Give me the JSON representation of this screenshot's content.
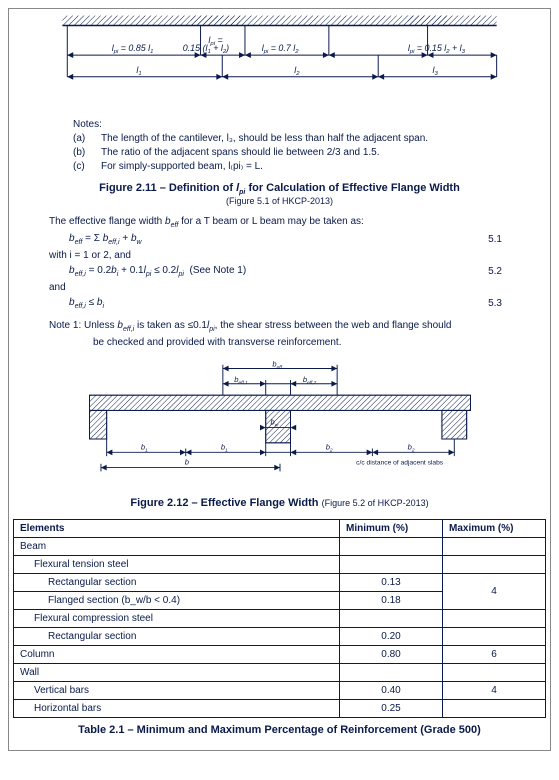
{
  "beam_diagram": {
    "labels": {
      "span0": "l₍pi₎ = 0.85 l₁",
      "span1_top": "l₍pi₎ =",
      "span1": "0.15 (l₁ + l₂)",
      "span2": "l₍pi₎ = 0.7 l₂",
      "span3": "l₍pi₎ = 0.15 l₂ + l₃",
      "len1": "l₁",
      "len2": "l₂",
      "len3": "l₃"
    },
    "colors": {
      "line": "#0a1a4a",
      "hatch": "#0a1a4a"
    }
  },
  "notes": {
    "heading": "Notes:",
    "items": [
      {
        "key": "(a)",
        "text": "The length of the cantilever, l₃, should be less than half the adjacent span."
      },
      {
        "key": "(b)",
        "text": "The ratio of the adjacent spans should lie between 2/3 and 1.5."
      },
      {
        "key": "(c)",
        "text": "For simply-supported beam, l₍pi₎ = L."
      }
    ]
  },
  "figure211": {
    "main_a": "Figure 2.11 – Definition of ",
    "main_b": " for Calculation of Effective Flange Width",
    "symbol": "l₍pi₎",
    "sub": "(Figure 5.1 of HKCP-2013)"
  },
  "formulas": {
    "intro": "The effective flange width b₍eff₎ for a T beam or L beam may be taken as:",
    "eq1": "b₍eff₎ = Σ b₍eff,i₎ + b_w",
    "eq1_num": "5.1",
    "with_line": "with i = 1 or 2, and",
    "eq2": "b₍eff,i₎ = 0.2bᵢ + 0.1l₍pi₎ ≤ 0.2l₍pi₎  (See Note 1)",
    "eq2_num": "5.2",
    "and_line": "and",
    "eq3": "b₍eff,i₎ ≤ bᵢ",
    "eq3_num": "5.3",
    "note1_a": "Note 1: Unless b₍eff,i₎ is taken as ≤0.1l₍pi₎, the shear stress between the web and flange should",
    "note1_b": "be checked and provided with transverse reinforcement."
  },
  "flange_diagram": {
    "labels": {
      "beff": "b₍eff₎",
      "beff1": "b₍eff,1₎",
      "beff2": "b₍eff,2₎",
      "bw": "b_w",
      "b1": "b₁",
      "b2": "b₂",
      "b": "b",
      "cc": "c/c distance of adjacent slabs"
    }
  },
  "figure212": {
    "main": "Figure 2.12 – Effective Flange Width ",
    "sub": "(Figure 5.2 of HKCP-2013)"
  },
  "table": {
    "headers": {
      "el": "Elements",
      "min": "Minimum (%)",
      "max": "Maximum (%)"
    },
    "rows": [
      {
        "label": "Beam",
        "indent": 0,
        "min": "",
        "max_span": ""
      },
      {
        "label": "Flexural tension steel",
        "indent": 1,
        "min": "",
        "max_span": ""
      },
      {
        "label": "Rectangular section",
        "indent": 2,
        "min": "0.13",
        "max_span": "start",
        "max_val": "4"
      },
      {
        "label": "Flanged section (b_w/b < 0.4)",
        "indent": 2,
        "min": "0.18",
        "max_span": "merged"
      },
      {
        "label": "Flexural compression steel",
        "indent": 1,
        "min": "",
        "max_span": ""
      },
      {
        "label": "Rectangular section",
        "indent": 2,
        "min": "0.20",
        "max_span": ""
      },
      {
        "label": "Column",
        "indent": 0,
        "min": "0.80",
        "max_span": "single",
        "max_val": "6"
      },
      {
        "label": "Wall",
        "indent": 0,
        "min": "",
        "max_span": ""
      },
      {
        "label": "Vertical bars",
        "indent": 1,
        "min": "0.40",
        "max_span": "single",
        "max_val": "4"
      },
      {
        "label": "Horizontal bars",
        "indent": 1,
        "min": "0.25",
        "max_span": ""
      }
    ],
    "caption": "Table 2.1 – Minimum and Maximum Percentage of Reinforcement (Grade 500)"
  }
}
